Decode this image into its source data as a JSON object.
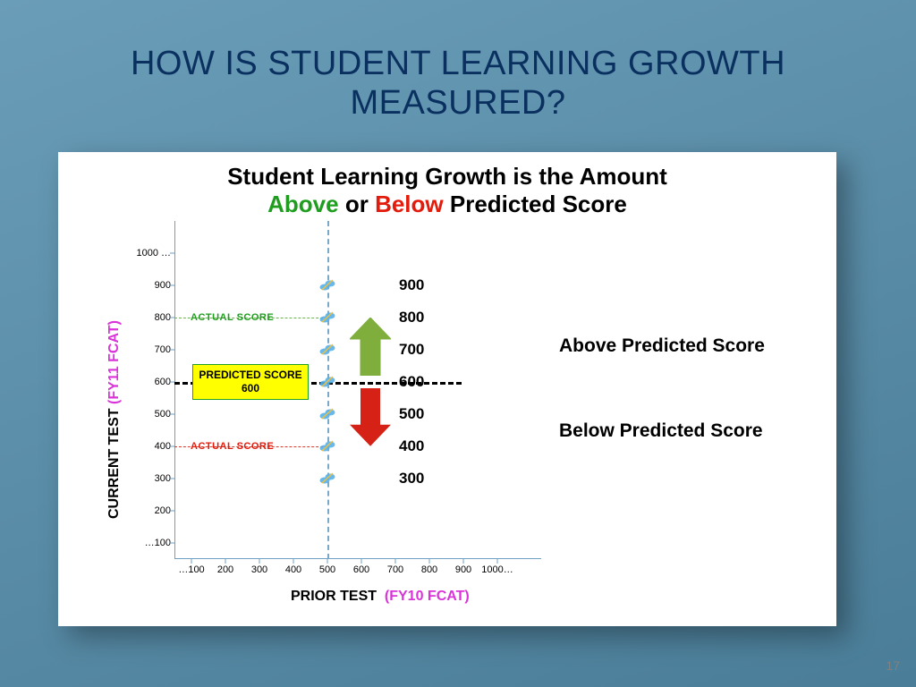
{
  "slide": {
    "title_line1": "HOW IS STUDENT LEARNING GROWTH",
    "title_line2": "MEASURED?",
    "page_number": "17",
    "title_color": "#0a3060",
    "bg_gradient_from": "#6a9db8",
    "bg_gradient_to": "#4a7d98"
  },
  "chart": {
    "panel_bg": "#ffffff",
    "axis_color": "#6ea0c4",
    "title_line1": "Student Learning Growth is the Amount",
    "title_above_word": "Above",
    "title_or_word": " or ",
    "title_below_word": "Below",
    "title_tail": " Predicted Score",
    "above_color": "#1f9d1f",
    "below_color": "#e31b0c",
    "ylabel_main": "CURRENT TEST",
    "ylabel_sub": "(FY11 FCAT)",
    "ylabel_sub_color": "#d933d9",
    "xlabel_main": "PRIOR TEST",
    "xlabel_sub": "(FY10 FCAT)",
    "xlabel_sub_color": "#d933d9",
    "y_ticks": [
      {
        "value": 100,
        "label": "…100"
      },
      {
        "value": 200,
        "label": "200"
      },
      {
        "value": 300,
        "label": "300"
      },
      {
        "value": 400,
        "label": "400"
      },
      {
        "value": 500,
        "label": "500"
      },
      {
        "value": 600,
        "label": "600"
      },
      {
        "value": 700,
        "label": "700"
      },
      {
        "value": 800,
        "label": "800"
      },
      {
        "value": 900,
        "label": "900"
      },
      {
        "value": 1000,
        "label": "1000 …"
      }
    ],
    "x_ticks": [
      {
        "value": 100,
        "label": "…100"
      },
      {
        "value": 200,
        "label": "200"
      },
      {
        "value": 300,
        "label": "300"
      },
      {
        "value": 400,
        "label": "400"
      },
      {
        "value": 500,
        "label": "500"
      },
      {
        "value": 600,
        "label": "600"
      },
      {
        "value": 700,
        "label": "700"
      },
      {
        "value": 800,
        "label": "800"
      },
      {
        "value": 900,
        "label": "900"
      },
      {
        "value": 1000,
        "label": "1000…"
      }
    ],
    "xlim": [
      50,
      1050
    ],
    "ylim": [
      50,
      1050
    ],
    "vertical_dash_x": 500,
    "predicted": {
      "value": 600,
      "label_line1": "PREDICTED SCORE",
      "label_line2": "600",
      "box_bg": "#ffff00",
      "box_border": "#20a020"
    },
    "actual_above": {
      "value": 800,
      "label": "ACTUAL  SCORE",
      "color": "#1f9d1f"
    },
    "actual_below": {
      "value": 400,
      "label": "ACTUAL  SCORE",
      "color": "#e31b0c"
    },
    "points": [
      300,
      400,
      500,
      600,
      700,
      800,
      900
    ],
    "marker_color": "#58b0e8",
    "marker_accent": "#f0c040",
    "value_labels": [
      300,
      400,
      500,
      600,
      700,
      800,
      900
    ],
    "above_text": "Above Predicted Score",
    "below_text": "Below Predicted Score",
    "up_arrow_color": "#7fae3c",
    "down_arrow_color": "#d62216"
  }
}
